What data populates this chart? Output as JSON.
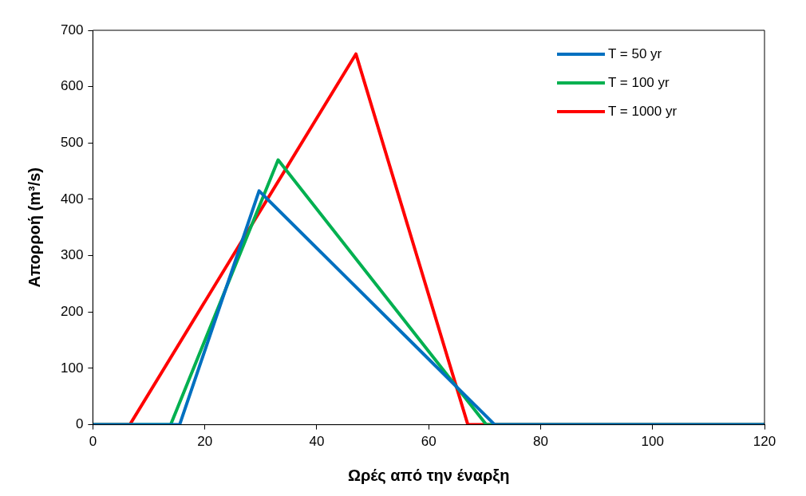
{
  "chart_data": {
    "type": "line",
    "xlabel": "Ωρές από την έναρξη",
    "ylabel": "Απορροή (m³/s)",
    "xlim": [
      0,
      120
    ],
    "xticks": [
      0,
      20,
      40,
      60,
      80,
      100,
      120
    ],
    "ylim": [
      0,
      700
    ],
    "yticks": [
      0,
      100,
      200,
      300,
      400,
      500,
      600,
      700
    ],
    "grid": false,
    "legend": "top right",
    "marker": "none",
    "line_style": "solid",
    "series": [
      {
        "name": "T = 50 yr",
        "color": "#0070c0",
        "x": [
          0,
          15.5,
          29.7,
          71.8,
          120
        ],
        "values": [
          0,
          0,
          415,
          0,
          0
        ]
      },
      {
        "name": "T = 100 yr",
        "color": "#00b050",
        "x": [
          0,
          13.9,
          33.1,
          70.3,
          120
        ],
        "values": [
          0,
          0,
          470,
          0,
          0
        ]
      },
      {
        "name": "T = 1000 yr",
        "color": "#ff0000",
        "x": [
          0,
          6.6,
          47,
          67,
          120
        ],
        "values": [
          0,
          0,
          658,
          0,
          0
        ]
      }
    ]
  }
}
